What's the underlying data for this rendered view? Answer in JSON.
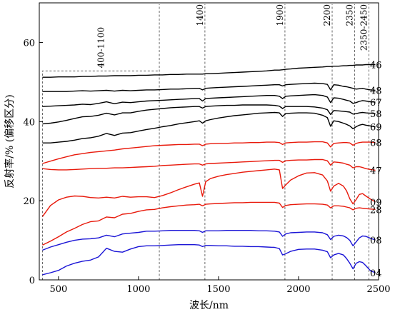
{
  "chart_data": {
    "type": "line",
    "title": "",
    "xlabel": "波长/nm",
    "ylabel": "反射率/% (偏移区分)",
    "xlim": [
      380,
      2500
    ],
    "ylim": [
      0,
      70
    ],
    "xticks": [
      500,
      1000,
      1500,
      2000,
      2500
    ],
    "yticks": [
      0,
      20,
      40,
      60
    ],
    "grid": false,
    "reference_lines": [
      {
        "x": 1130,
        "label": ""
      },
      {
        "x": 1415,
        "label": "1400"
      },
      {
        "x": 1915,
        "label": "1900"
      },
      {
        "x": 2210,
        "label": "2200"
      },
      {
        "x": 2350,
        "label": "2350"
      },
      {
        "x": 2440,
        "label": "2350-2450"
      }
    ],
    "highlight_box": {
      "x_range": [
        400,
        1130
      ],
      "y_top": 52.8,
      "label": "400-1100"
    },
    "x": [
      400,
      450,
      500,
      550,
      600,
      650,
      700,
      750,
      800,
      850,
      900,
      950,
      1000,
      1050,
      1100,
      1150,
      1200,
      1250,
      1300,
      1350,
      1380,
      1400,
      1420,
      1450,
      1500,
      1550,
      1600,
      1650,
      1700,
      1750,
      1800,
      1850,
      1880,
      1900,
      1920,
      1950,
      2000,
      2050,
      2100,
      2150,
      2180,
      2200,
      2220,
      2250,
      2280,
      2300,
      2320,
      2340,
      2360,
      2380,
      2400,
      2420,
      2450,
      2480
    ],
    "series": [
      {
        "name": "46",
        "color": "#000000",
        "values": [
          51.2,
          51.2,
          51.3,
          51.3,
          51.3,
          51.4,
          51.4,
          51.5,
          51.5,
          51.6,
          51.6,
          51.6,
          51.7,
          51.7,
          51.8,
          51.8,
          51.9,
          51.9,
          52.0,
          52.0,
          52.0,
          52.0,
          52.1,
          52.1,
          52.2,
          52.3,
          52.4,
          52.5,
          52.6,
          52.7,
          52.8,
          53.0,
          53.0,
          53.1,
          53.2,
          53.3,
          53.5,
          53.6,
          53.7,
          53.8,
          53.9,
          53.9,
          54.0,
          54.0,
          54.1,
          54.1,
          54.2,
          54.2,
          54.3,
          54.3,
          54.3,
          54.4,
          54.4,
          54.4
        ]
      },
      {
        "name": "48",
        "color": "#000000",
        "values": [
          47.6,
          47.6,
          47.6,
          47.6,
          47.7,
          47.8,
          47.7,
          47.8,
          47.9,
          47.7,
          47.9,
          47.8,
          47.9,
          48.0,
          48.0,
          48.1,
          48.2,
          48.2,
          48.3,
          48.4,
          48.4,
          48.0,
          48.4,
          48.5,
          48.6,
          48.7,
          48.8,
          48.9,
          49.0,
          49.1,
          49.2,
          49.3,
          49.3,
          49.0,
          49.3,
          49.4,
          49.5,
          49.6,
          49.7,
          49.6,
          49.4,
          48.0,
          49.3,
          49.2,
          48.9,
          48.8,
          48.6,
          48.4,
          48.2,
          48.3,
          48.4,
          48.2,
          48.0,
          47.9
        ]
      },
      {
        "name": "67",
        "color": "#000000",
        "values": [
          43.8,
          43.9,
          44.0,
          44.1,
          44.2,
          44.4,
          44.3,
          44.6,
          45.0,
          44.5,
          44.9,
          44.8,
          45.0,
          45.2,
          45.3,
          45.4,
          45.5,
          45.6,
          45.7,
          45.8,
          45.8,
          45.2,
          45.8,
          45.9,
          46.0,
          46.1,
          46.2,
          46.3,
          46.4,
          46.5,
          46.6,
          46.6,
          46.4,
          45.8,
          46.4,
          46.5,
          46.6,
          46.7,
          46.8,
          46.6,
          46.2,
          44.8,
          46.0,
          45.9,
          45.6,
          45.4,
          45.2,
          44.6,
          44.8,
          45.1,
          45.3,
          45.2,
          45.0,
          44.9
        ]
      },
      {
        "name": "58",
        "color": "#000000",
        "values": [
          39.4,
          39.6,
          39.9,
          40.3,
          40.8,
          41.2,
          41.3,
          41.6,
          42.1,
          41.7,
          42.2,
          42.2,
          42.6,
          42.9,
          43.1,
          43.3,
          43.5,
          43.6,
          43.7,
          43.8,
          43.8,
          43.4,
          43.8,
          43.9,
          44.0,
          44.1,
          44.1,
          44.2,
          44.2,
          44.2,
          44.2,
          44.1,
          43.9,
          43.3,
          43.8,
          43.8,
          43.8,
          43.8,
          43.7,
          43.4,
          43.0,
          41.8,
          42.8,
          42.7,
          42.6,
          42.5,
          42.4,
          41.9,
          42.0,
          42.2,
          42.3,
          42.2,
          42.1,
          42.0
        ]
      },
      {
        "name": "69",
        "color": "#000000",
        "values": [
          34.6,
          34.6,
          34.8,
          35.0,
          35.3,
          35.7,
          35.9,
          36.3,
          37.0,
          36.5,
          37.1,
          37.2,
          37.6,
          38.0,
          38.3,
          38.7,
          39.0,
          39.4,
          39.7,
          40.0,
          40.2,
          39.6,
          40.2,
          40.5,
          40.9,
          41.2,
          41.5,
          41.7,
          41.9,
          42.1,
          42.2,
          42.3,
          42.2,
          41.3,
          42.0,
          42.1,
          42.2,
          42.2,
          42.1,
          41.6,
          41.0,
          38.8,
          40.2,
          40.0,
          39.6,
          39.3,
          38.9,
          38.2,
          38.7,
          39.1,
          39.3,
          39.1,
          38.9,
          38.7
        ]
      },
      {
        "name": "68",
        "color": "#e8190b",
        "values": [
          29.4,
          30.0,
          30.6,
          31.1,
          31.6,
          31.9,
          32.2,
          32.4,
          32.6,
          32.8,
          33.1,
          33.3,
          33.5,
          33.7,
          33.9,
          34.0,
          34.1,
          34.2,
          34.2,
          34.3,
          34.3,
          33.9,
          34.3,
          34.4,
          34.5,
          34.5,
          34.6,
          34.6,
          34.7,
          34.7,
          34.8,
          34.8,
          34.7,
          34.2,
          34.6,
          34.7,
          34.8,
          34.8,
          34.9,
          34.9,
          34.6,
          33.6,
          34.5,
          34.6,
          34.7,
          34.7,
          34.6,
          34.0,
          34.5,
          34.7,
          34.8,
          34.8,
          34.8,
          34.7
        ]
      },
      {
        "name": "47",
        "color": "#e8190b",
        "values": [
          28.1,
          27.9,
          27.8,
          27.8,
          27.9,
          28.0,
          28.1,
          28.2,
          28.2,
          28.3,
          28.3,
          28.4,
          28.5,
          28.6,
          28.7,
          28.9,
          29.0,
          29.1,
          29.2,
          29.3,
          29.3,
          29.0,
          29.3,
          29.4,
          29.5,
          29.6,
          29.7,
          29.8,
          29.9,
          30.0,
          30.1,
          30.2,
          30.2,
          29.7,
          30.1,
          30.2,
          30.3,
          30.3,
          30.4,
          30.4,
          30.1,
          29.0,
          29.8,
          29.7,
          29.5,
          29.2,
          29.0,
          28.3,
          28.6,
          28.6,
          28.4,
          28.1,
          27.9,
          27.7
        ]
      },
      {
        "name": "09",
        "color": "#e8190b",
        "values": [
          16.0,
          18.8,
          20.2,
          20.9,
          21.2,
          21.1,
          20.8,
          20.7,
          20.9,
          20.7,
          21.1,
          20.9,
          21.0,
          21.0,
          20.8,
          21.3,
          22.0,
          22.8,
          23.5,
          24.2,
          24.5,
          21.1,
          24.8,
          25.6,
          26.2,
          26.6,
          26.9,
          27.2,
          27.4,
          27.6,
          27.8,
          28.0,
          27.8,
          23.1,
          24.0,
          25.2,
          26.3,
          27.0,
          27.1,
          26.5,
          25.0,
          22.4,
          23.7,
          24.4,
          23.7,
          22.5,
          20.5,
          19.2,
          20.3,
          21.6,
          21.8,
          21.2,
          20.4,
          19.7
        ]
      },
      {
        "name": "28",
        "color": "#e8190b",
        "values": [
          8.8,
          9.8,
          10.9,
          12.1,
          13.0,
          14.0,
          14.7,
          14.9,
          15.9,
          15.7,
          16.6,
          16.8,
          17.3,
          17.7,
          17.8,
          18.2,
          18.5,
          18.7,
          18.9,
          19.0,
          19.1,
          18.7,
          19.1,
          19.2,
          19.3,
          19.4,
          19.5,
          19.5,
          19.6,
          19.6,
          19.6,
          19.6,
          19.4,
          18.3,
          18.8,
          19.0,
          19.1,
          19.2,
          19.2,
          19.1,
          18.9,
          18.2,
          18.7,
          18.7,
          18.6,
          18.4,
          18.2,
          17.7,
          18.1,
          18.2,
          18.1,
          18.0,
          17.9,
          17.8
        ]
      },
      {
        "name": "08",
        "color": "#1a14d6",
        "values": [
          7.5,
          8.3,
          8.9,
          9.5,
          10.0,
          10.3,
          10.4,
          10.6,
          11.3,
          10.9,
          11.6,
          11.8,
          12.0,
          12.3,
          12.3,
          12.4,
          12.5,
          12.5,
          12.5,
          12.5,
          12.4,
          12.0,
          12.4,
          12.4,
          12.4,
          12.5,
          12.5,
          12.5,
          12.5,
          12.4,
          12.4,
          12.3,
          12.1,
          11.0,
          11.6,
          11.9,
          12.0,
          12.1,
          12.1,
          11.9,
          11.4,
          10.2,
          11.0,
          11.3,
          11.1,
          10.7,
          10.0,
          8.6,
          9.6,
          10.6,
          11.1,
          11.0,
          10.5,
          10.1
        ]
      },
      {
        "name": "04",
        "color": "#1a14d6",
        "values": [
          1.3,
          1.8,
          2.4,
          3.5,
          4.2,
          4.7,
          5.0,
          5.8,
          8.0,
          7.2,
          7.0,
          7.8,
          8.4,
          8.6,
          8.6,
          8.7,
          8.8,
          8.9,
          8.9,
          8.9,
          8.8,
          8.4,
          8.7,
          8.7,
          8.6,
          8.6,
          8.5,
          8.5,
          8.4,
          8.4,
          8.3,
          8.2,
          7.9,
          6.3,
          6.6,
          7.2,
          7.7,
          7.8,
          7.8,
          7.5,
          7.1,
          5.6,
          6.3,
          6.7,
          6.3,
          5.4,
          4.2,
          2.8,
          4.2,
          4.6,
          4.4,
          3.6,
          2.3,
          1.8
        ]
      }
    ]
  }
}
